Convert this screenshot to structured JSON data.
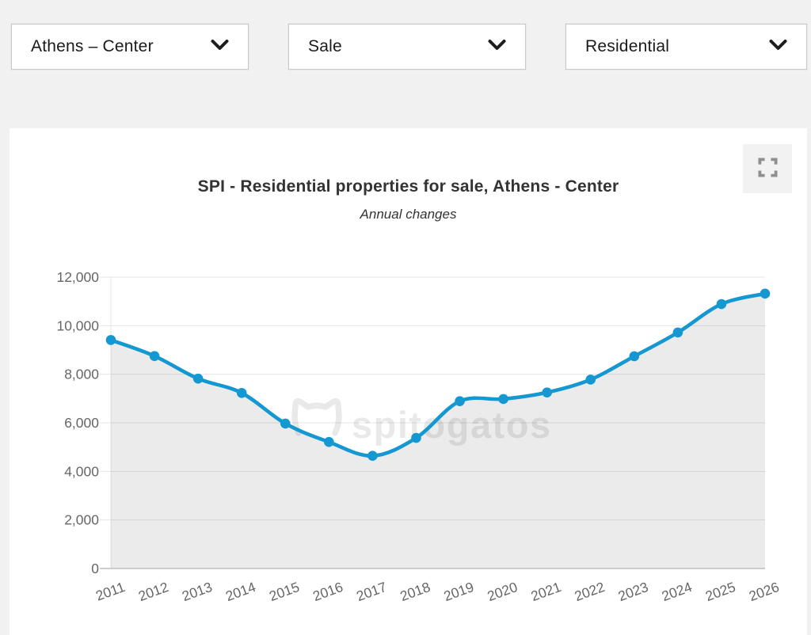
{
  "filters": [
    {
      "id": "location",
      "value": "Athens – Center"
    },
    {
      "id": "transaction_type",
      "value": "Sale"
    },
    {
      "id": "property_type",
      "value": "Residential"
    }
  ],
  "chart_card": {
    "fullscreen_icon": "fullscreen-expand-icon"
  },
  "chart_data": {
    "type": "area",
    "title": "SPI - Residential properties for sale, Athens - Center",
    "subtitle": "Annual changes",
    "x": [
      2011,
      2012,
      2013,
      2014,
      2015,
      2016,
      2017,
      2018,
      2019,
      2020,
      2021,
      2022,
      2023,
      2024,
      2025,
      2026
    ],
    "series": [
      {
        "name": "SPI",
        "values": [
          9410,
          8750,
          7820,
          7230,
          5970,
          5210,
          4640,
          5380,
          6890,
          6980,
          7250,
          7780,
          8740,
          9720,
          10890,
          11320
        ]
      }
    ],
    "xlabel": "",
    "ylabel": "",
    "ylim": [
      0,
      12000
    ],
    "yticks": [
      0,
      2000,
      4000,
      6000,
      8000,
      10000,
      12000
    ],
    "grid": true,
    "legend": "none",
    "x_label_rotation": -20,
    "line_color": "#1598d2",
    "marker_color": "#1598d2",
    "area_fill": "rgba(0,0,0,0.08)",
    "axis_label_color": "#666666",
    "gridline_color": "#e5e5e5",
    "axis_line_color": "#bdbdbd",
    "watermark": "spitogatos"
  }
}
